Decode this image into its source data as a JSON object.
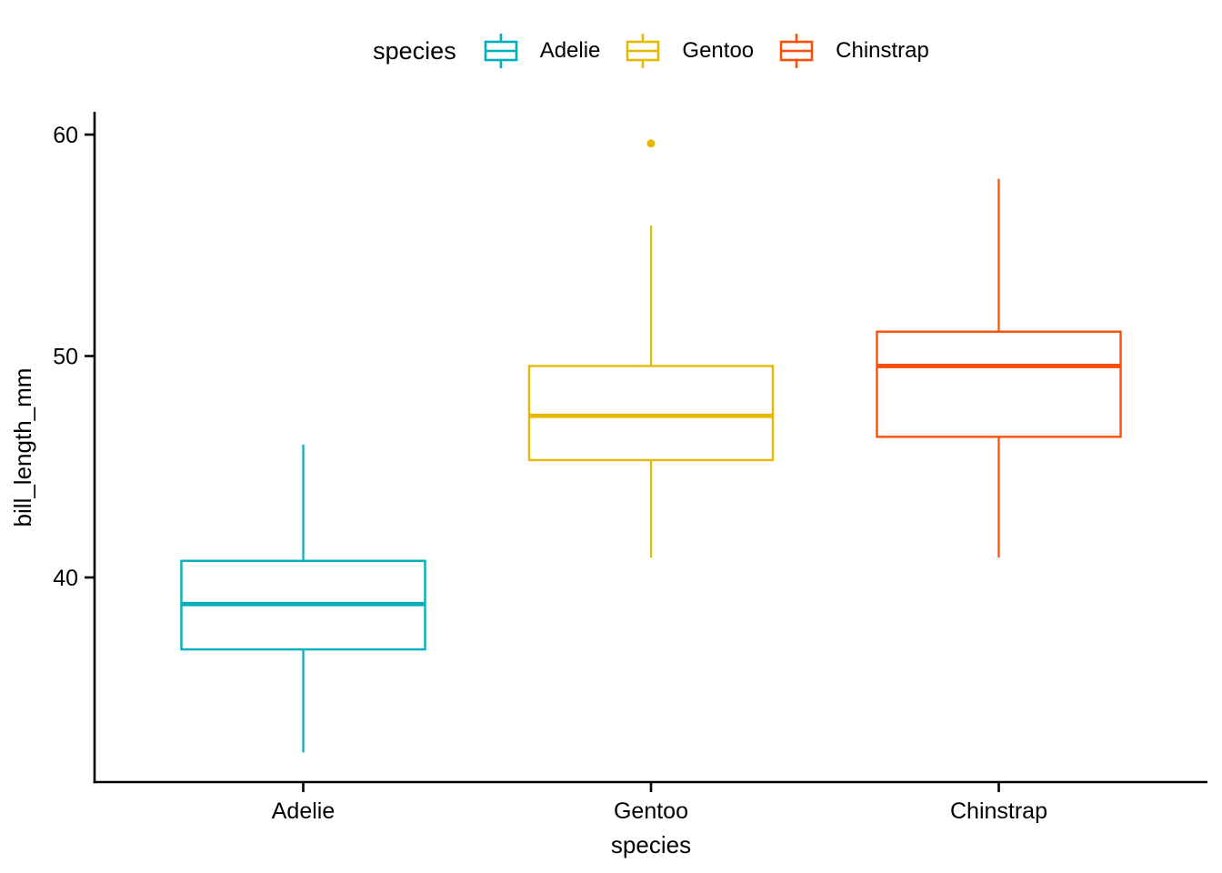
{
  "chart_data": {
    "type": "boxplot",
    "title": "",
    "xlabel": "species",
    "ylabel": "bill_length_mm",
    "categories": [
      "Adelie",
      "Gentoo",
      "Chinstrap"
    ],
    "y_ticks": [
      40,
      50,
      60
    ],
    "y_tick_labels": [
      "40",
      "50",
      "60"
    ],
    "ylim": [
      30.8,
      61.0
    ],
    "grid": "off",
    "legend": {
      "title": "species",
      "position": "top",
      "entries": [
        {
          "label": "Adelie",
          "color": "#00AFBB"
        },
        {
          "label": "Gentoo",
          "color": "#E7B800"
        },
        {
          "label": "Chinstrap",
          "color": "#FC4E07"
        }
      ]
    },
    "series": [
      {
        "name": "Adelie",
        "color": "#00AFBB",
        "whisker_low": 32.1,
        "q1": 36.75,
        "median": 38.8,
        "q3": 40.75,
        "whisker_high": 46.0,
        "outliers": []
      },
      {
        "name": "Gentoo",
        "color": "#E7B800",
        "whisker_low": 40.9,
        "q1": 45.3,
        "median": 47.3,
        "q3": 49.55,
        "whisker_high": 55.9,
        "outliers": [
          59.6
        ]
      },
      {
        "name": "Chinstrap",
        "color": "#FC4E07",
        "whisker_low": 40.9,
        "q1": 46.35,
        "median": 49.55,
        "q3": 51.1,
        "whisker_high": 58.0,
        "outliers": []
      }
    ]
  },
  "colors": {
    "background": "#FFFFFF",
    "axis": "#000000",
    "text": "#000000",
    "box_fill": "#FFFFFF"
  }
}
